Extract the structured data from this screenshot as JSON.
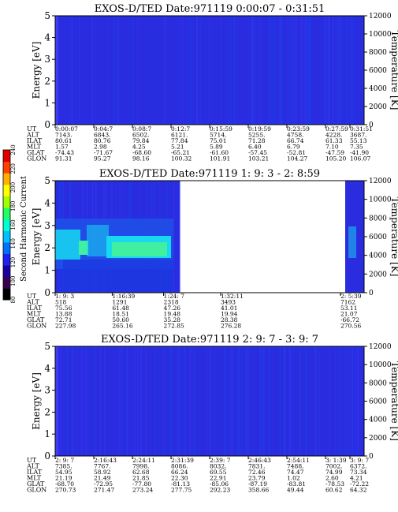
{
  "colors": {
    "background_blue": "#2a2ce0",
    "mid_blue": "#1f4fe8",
    "cyan": "#18d8f0",
    "green_cyan": "#40f0a0",
    "blank": "#ffffff",
    "frame": "#000000"
  },
  "colorbar": {
    "label": "Second Harmonic Current",
    "ticks": [
      "240",
      "220",
      "200",
      "180",
      "160",
      "140",
      "120",
      "100",
      "80"
    ],
    "range": [
      80,
      240
    ],
    "colors": [
      "#000000",
      "#3a0050",
      "#1800a0",
      "#2020f0",
      "#0070ff",
      "#00c0ff",
      "#00ffd0",
      "#20ff60",
      "#a0ff00",
      "#ffff00",
      "#ffb000",
      "#ff4000",
      "#e00000"
    ]
  },
  "chart_data": [
    {
      "type": "heatmap",
      "title": "EXOS-D/TED   Date:971119  0:00:07 - 0:31:51",
      "ylabel": "Energy [eV]",
      "ylabel_right": "Temperature [K]",
      "ylim": [
        0,
        5
      ],
      "y_ticks": [
        "0",
        "1",
        "2",
        "3",
        "4",
        "5"
      ],
      "ylim_right": [
        0,
        12000
      ],
      "y_ticks_right": [
        "0",
        "2000",
        "4000",
        "6000",
        "8000",
        "10000",
        "12000"
      ],
      "rows": [
        {
          "label": "UT",
          "values": [
            "0:00:07",
            "0:04:7",
            "0:08:7",
            "0:12:7",
            "0:15:59",
            "0:19:59",
            "0:23:59",
            "0:27:59",
            "0:31:51"
          ]
        },
        {
          "label": "ALT",
          "values": [
            "7143.",
            "6843.",
            "6502.",
            "6121.",
            "5714.",
            "5255.",
            "4758.",
            "4228.",
            "3687."
          ]
        },
        {
          "label": "ILAT",
          "values": [
            "80.61",
            "80.76",
            "79.84",
            "77.84",
            "75.01",
            "71.28",
            "66.74",
            "61.33",
            "55.13"
          ]
        },
        {
          "label": "MLT",
          "values": [
            "1.57",
            "2.98",
            "4.25",
            "5.21",
            "5.89",
            "6.40",
            "6.79",
            "7.10",
            "7.35"
          ]
        },
        {
          "label": "GLAT",
          "values": [
            "-74.43",
            "-71.67",
            "-68.60",
            "-65.21",
            "-61.60",
            "-57.45",
            "-52.81",
            "-47.59",
            "-41.90"
          ]
        },
        {
          "label": "GLON",
          "values": [
            "91.31",
            "95.27",
            "98.16",
            "100.32",
            "101.91",
            "103.21",
            "104.27",
            "105.20",
            "106.07"
          ]
        }
      ]
    },
    {
      "type": "heatmap",
      "title": "EXOS-D/TED   Date:971119  1: 9: 3 - 2: 8:59",
      "ylabel": "Energy [eV]",
      "ylabel_right": "Temperature [K]",
      "ylim": [
        0,
        5
      ],
      "y_ticks": [
        "0",
        "1",
        "2",
        "3",
        "4",
        "5"
      ],
      "ylim_right": [
        0,
        12000
      ],
      "y_ticks_right": [
        "0",
        "2000",
        "4000",
        "6000",
        "8000",
        "10000",
        "12000"
      ],
      "data_gap": [
        "1:32:11",
        "2: 5:39"
      ],
      "rows": [
        {
          "label": "UT",
          "values": [
            "1: 9: 3",
            "1:16:39",
            "1:24: 7",
            "1:32:11",
            "2: 5:39"
          ]
        },
        {
          "label": "ALT",
          "values": [
            "518",
            "1291",
            "2318",
            "3493",
            "7162"
          ]
        },
        {
          "label": "ILAT",
          "values": [
            "75.56",
            "61.48",
            "47.26",
            "41.01",
            "53.11"
          ]
        },
        {
          "label": "MLT",
          "values": [
            "13.88",
            "18.51",
            "19.48",
            "19.94",
            "21.07"
          ]
        },
        {
          "label": "GLAT",
          "values": [
            "72.71",
            "50.60",
            "35.28",
            "28.38",
            "-66.72"
          ]
        },
        {
          "label": "GLON",
          "values": [
            "227.98",
            "265.16",
            "272.85",
            "276.28",
            "270.56"
          ]
        }
      ]
    },
    {
      "type": "heatmap",
      "title": "EXOS-D/TED   Date:971119  2: 9: 7 - 3: 9: 7",
      "ylabel": "Energy [eV]",
      "ylabel_right": "Temperature [K]",
      "ylim": [
        0,
        5
      ],
      "y_ticks": [
        "0",
        "1",
        "2",
        "3",
        "4",
        "5"
      ],
      "ylim_right": [
        0,
        12000
      ],
      "y_ticks_right": [
        "0",
        "2000",
        "4000",
        "6000",
        "8000",
        "10000",
        "12000"
      ],
      "rows": [
        {
          "label": "UT",
          "values": [
            "2: 9: 7",
            "2:16:43",
            "2:24:11",
            "2:31:39",
            "2:39: 7",
            "2:46:43",
            "2:54:11",
            "3: 1:39",
            "3: 9: 7"
          ]
        },
        {
          "label": "ALT",
          "values": [
            "7385.",
            "7767.",
            "7998.",
            "8086.",
            "8032.",
            "7831.",
            "7488.",
            "7002.",
            "6372."
          ]
        },
        {
          "label": "ILAT",
          "values": [
            "54.95",
            "58.92",
            "62.68",
            "66.24",
            "69.55",
            "72.46",
            "74.47",
            "74.99",
            "73.34"
          ]
        },
        {
          "label": "MLT",
          "values": [
            "21.19",
            "21.49",
            "21.85",
            "22.30",
            "22.91",
            "23.79",
            "1.02",
            "2.60",
            "4.21"
          ]
        },
        {
          "label": "GLAT",
          "values": [
            "-68.70",
            "-72.95",
            "-77.80",
            "-81.13",
            "-85.06",
            "-87.19",
            "-83.81",
            "-78.53",
            "-72.22"
          ]
        },
        {
          "label": "GLON",
          "values": [
            "270.73",
            "271.47",
            "273.24",
            "277.75",
            "292.23",
            "358.66",
            "49.44",
            "60.62",
            "64.32"
          ]
        }
      ]
    }
  ]
}
